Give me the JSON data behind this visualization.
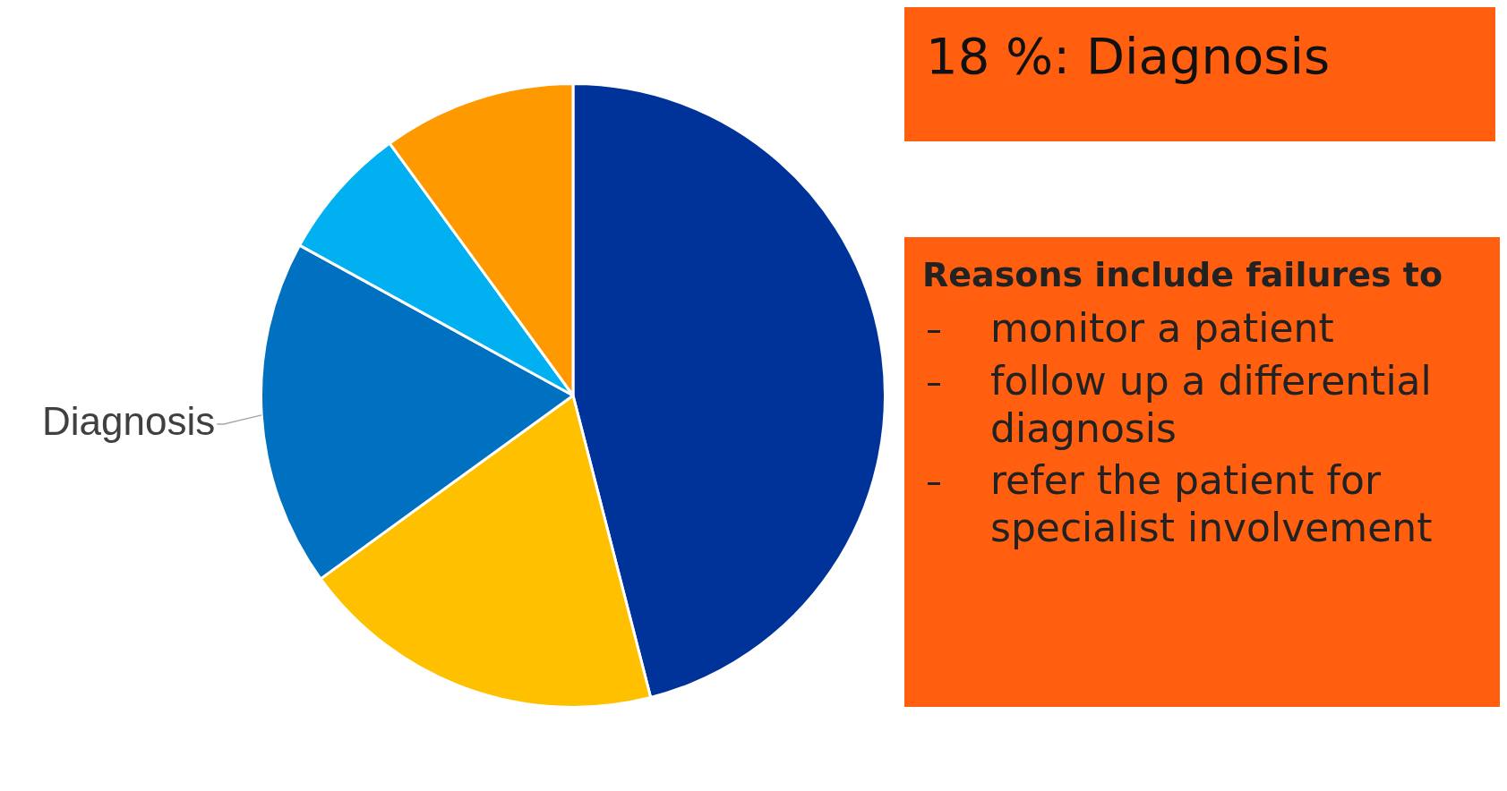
{
  "chart_data": {
    "type": "pie",
    "title": "18 %: Diagnosis",
    "categories": [
      null,
      null,
      "Diagnosis",
      null,
      null
    ],
    "values": [
      46,
      19,
      18,
      7,
      10
    ],
    "colors": [
      "#003399",
      "#ffc000",
      "#0070c0",
      "#00b0f0",
      "#ff9900"
    ],
    "annotations": [
      "Reasons include failures to",
      "monitor a patient",
      "follow up a differential diagnosis",
      "refer the patient for specialist involvement"
    ],
    "legend": false
  }
}
